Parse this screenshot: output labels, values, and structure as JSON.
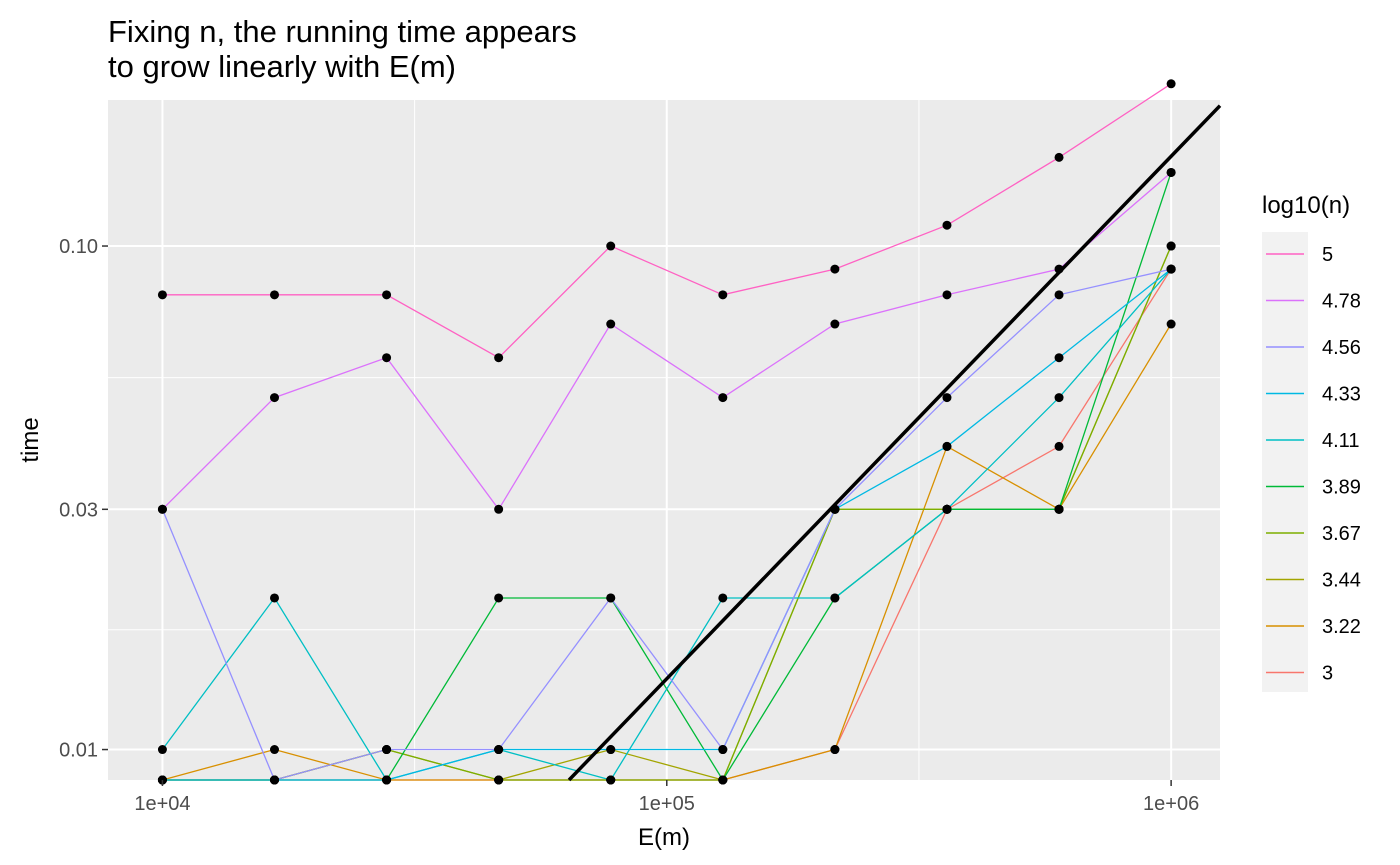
{
  "chart_data": {
    "type": "line",
    "title": "Fixing n, the running time appears\nto grow linearly with E(m)",
    "xlabel": "E(m)",
    "ylabel": "time",
    "x_scale": "log10",
    "y_scale": "log10",
    "xlim": [
      7800,
      1250000
    ],
    "ylim": [
      0.0087,
      0.195
    ],
    "x_ticks": [
      {
        "value": 10000,
        "label": "1e+04"
      },
      {
        "value": 100000,
        "label": "1e+05"
      },
      {
        "value": 1000000,
        "label": "1e+06"
      }
    ],
    "y_ticks": [
      {
        "value": 0.01,
        "label": "0.01"
      },
      {
        "value": 0.03,
        "label": "0.03"
      },
      {
        "value": 0.1,
        "label": "0.10"
      }
    ],
    "y_minor_ticks": [
      0.0173,
      0.0548
    ],
    "x_minor_ticks": [
      31623,
      316228
    ],
    "grid": true,
    "legend": {
      "title": "log10(n)",
      "placement": "right"
    },
    "x": [
      10000,
      16681,
      27826,
      46416,
      77426,
      129155,
      215443,
      359381,
      599484,
      1000000
    ],
    "series": [
      {
        "name": "5",
        "color": "#FF61C3",
        "values": [
          0.08,
          0.08,
          0.08,
          0.06,
          0.1,
          0.08,
          0.09,
          0.11,
          0.15,
          0.21
        ]
      },
      {
        "name": "4.78",
        "color": "#DB72FB",
        "values": [
          0.03,
          0.05,
          0.06,
          0.03,
          0.07,
          0.05,
          0.07,
          0.08,
          0.09,
          0.14
        ]
      },
      {
        "name": "4.56",
        "color": "#9590FF",
        "values": [
          0.03,
          0.0087,
          0.01,
          0.01,
          0.02,
          0.01,
          0.03,
          0.05,
          0.08,
          0.09
        ]
      },
      {
        "name": "4.33",
        "color": "#00B9E3",
        "values": [
          0.0087,
          0.0087,
          0.0087,
          0.01,
          0.01,
          0.01,
          0.03,
          0.04,
          0.06,
          0.09
        ]
      },
      {
        "name": "4.11",
        "color": "#00BFC4",
        "values": [
          0.01,
          0.02,
          0.0087,
          0.01,
          0.0087,
          0.02,
          0.02,
          0.03,
          0.05,
          0.09
        ]
      },
      {
        "name": "3.89",
        "color": "#00BA38",
        "values": [
          0.0087,
          0.0087,
          0.0087,
          0.02,
          0.02,
          0.0087,
          0.02,
          0.03,
          0.03,
          0.14
        ]
      },
      {
        "name": "3.67",
        "color": "#7CAE00",
        "values": [
          0.0087,
          0.0087,
          0.01,
          0.0087,
          0.0087,
          0.0087,
          0.03,
          0.03,
          0.03,
          0.1
        ]
      },
      {
        "name": "3.44",
        "color": "#A3A500",
        "values": [
          0.0087,
          0.0087,
          0.01,
          0.0087,
          0.01,
          0.0087,
          0.03,
          0.03,
          0.03,
          0.1
        ]
      },
      {
        "name": "3.22",
        "color": "#D89000",
        "values": [
          0.0087,
          0.01,
          0.0087,
          0.0087,
          0.0087,
          0.0087,
          0.01,
          0.04,
          0.03,
          0.07
        ]
      },
      {
        "name": "3",
        "color": "#F8766D",
        "values": [
          0.0087,
          0.0087,
          0.0087,
          0.0087,
          0.0087,
          0.0087,
          0.01,
          0.03,
          0.04,
          0.09
        ]
      }
    ],
    "reference_line": {
      "color": "#000000",
      "from": [
        64000,
        0.0087
      ],
      "to": [
        1250000,
        0.19
      ]
    }
  }
}
